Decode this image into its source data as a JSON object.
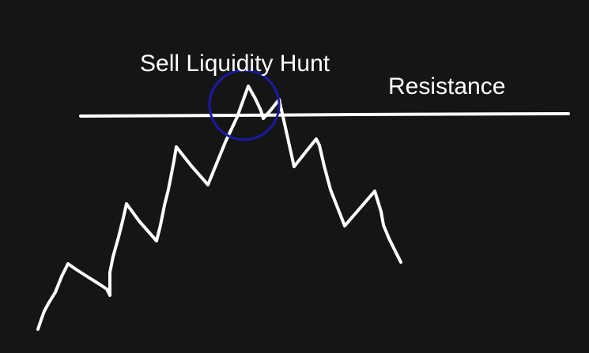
{
  "annotations": {
    "hunt_label": "Sell Liquidity Hunt",
    "resistance_label": "Resistance"
  },
  "colors": {
    "background": "#151515",
    "line": "#ffffff",
    "highlight_circle": "#1a1aa8",
    "text": "#ffffff"
  }
}
